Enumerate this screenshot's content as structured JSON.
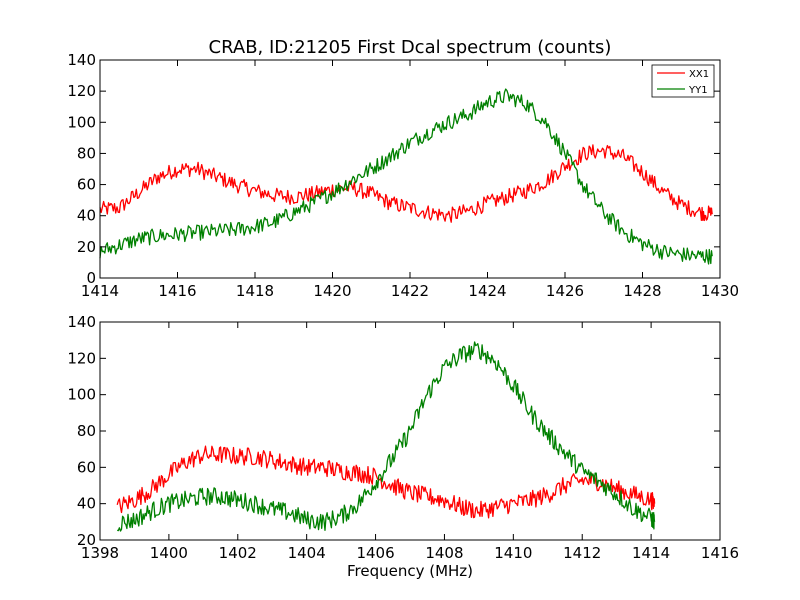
{
  "chart_data": [
    {
      "type": "line",
      "title": "CRAB, ID:21205 First Dcal spectrum (counts)",
      "xlabel": "",
      "ylabel": "",
      "xlim": [
        1414,
        1430
      ],
      "ylim": [
        0,
        140
      ],
      "xticks": [
        "1414",
        "1416",
        "1418",
        "1420",
        "1422",
        "1424",
        "1426",
        "1428",
        "1430"
      ],
      "yticks": [
        "0",
        "20",
        "40",
        "60",
        "80",
        "100",
        "120",
        "140"
      ],
      "legend": "top-right",
      "x": [
        1414.0,
        1414.5,
        1415.0,
        1415.5,
        1416.0,
        1416.5,
        1417.0,
        1417.5,
        1418.0,
        1418.5,
        1419.0,
        1419.5,
        1420.0,
        1420.5,
        1421.0,
        1421.5,
        1422.0,
        1422.5,
        1423.0,
        1423.5,
        1424.0,
        1424.5,
        1425.0,
        1425.5,
        1426.0,
        1426.5,
        1427.0,
        1427.5,
        1428.0,
        1428.5,
        1429.0,
        1429.5,
        1429.8
      ],
      "series": [
        {
          "name": "XX1",
          "color": "#ff0000",
          "values": [
            44,
            45,
            55,
            65,
            70,
            70,
            65,
            60,
            56,
            53,
            52,
            54,
            57,
            58,
            54,
            48,
            45,
            42,
            40,
            43,
            48,
            52,
            56,
            62,
            72,
            80,
            82,
            78,
            68,
            56,
            47,
            42,
            41
          ]
        },
        {
          "name": "YY1",
          "color": "#008000",
          "values": [
            17,
            21,
            25,
            27,
            28,
            29,
            30,
            31,
            33,
            36,
            42,
            48,
            55,
            63,
            70,
            78,
            87,
            94,
            100,
            105,
            113,
            117,
            112,
            100,
            80,
            58,
            42,
            30,
            22,
            17,
            15,
            14,
            14
          ]
        }
      ]
    },
    {
      "type": "line",
      "title": "",
      "xlabel": "Frequency (MHz)",
      "ylabel": "",
      "xlim": [
        1398,
        1416
      ],
      "ylim": [
        20,
        140
      ],
      "xticks": [
        "1398",
        "1400",
        "1402",
        "1404",
        "1406",
        "1408",
        "1410",
        "1412",
        "1414",
        "1416"
      ],
      "yticks": [
        "20",
        "40",
        "60",
        "80",
        "100",
        "120",
        "140"
      ],
      "x": [
        1398.5,
        1399.0,
        1399.5,
        1400.0,
        1400.5,
        1401.0,
        1401.5,
        1402.0,
        1402.5,
        1403.0,
        1403.5,
        1404.0,
        1404.5,
        1405.0,
        1405.5,
        1406.0,
        1406.5,
        1407.0,
        1407.5,
        1408.0,
        1408.5,
        1409.0,
        1409.5,
        1410.0,
        1410.5,
        1411.0,
        1411.5,
        1412.0,
        1412.5,
        1413.0,
        1413.5,
        1414.0,
        1414.1
      ],
      "series": [
        {
          "name": "XX1",
          "color": "#ff0000",
          "values": [
            38,
            42,
            48,
            56,
            63,
            67,
            67,
            66,
            66,
            64,
            62,
            60,
            60,
            58,
            57,
            55,
            50,
            46,
            44,
            42,
            38,
            36,
            38,
            40,
            42,
            45,
            50,
            53,
            52,
            48,
            45,
            42,
            40
          ]
        },
        {
          "name": "YY1",
          "color": "#008000",
          "values": [
            29,
            31,
            36,
            40,
            42,
            44,
            44,
            42,
            40,
            37,
            35,
            31,
            30,
            33,
            40,
            52,
            65,
            80,
            100,
            115,
            122,
            125,
            118,
            105,
            90,
            78,
            68,
            58,
            52,
            45,
            37,
            32,
            30
          ]
        }
      ]
    }
  ]
}
